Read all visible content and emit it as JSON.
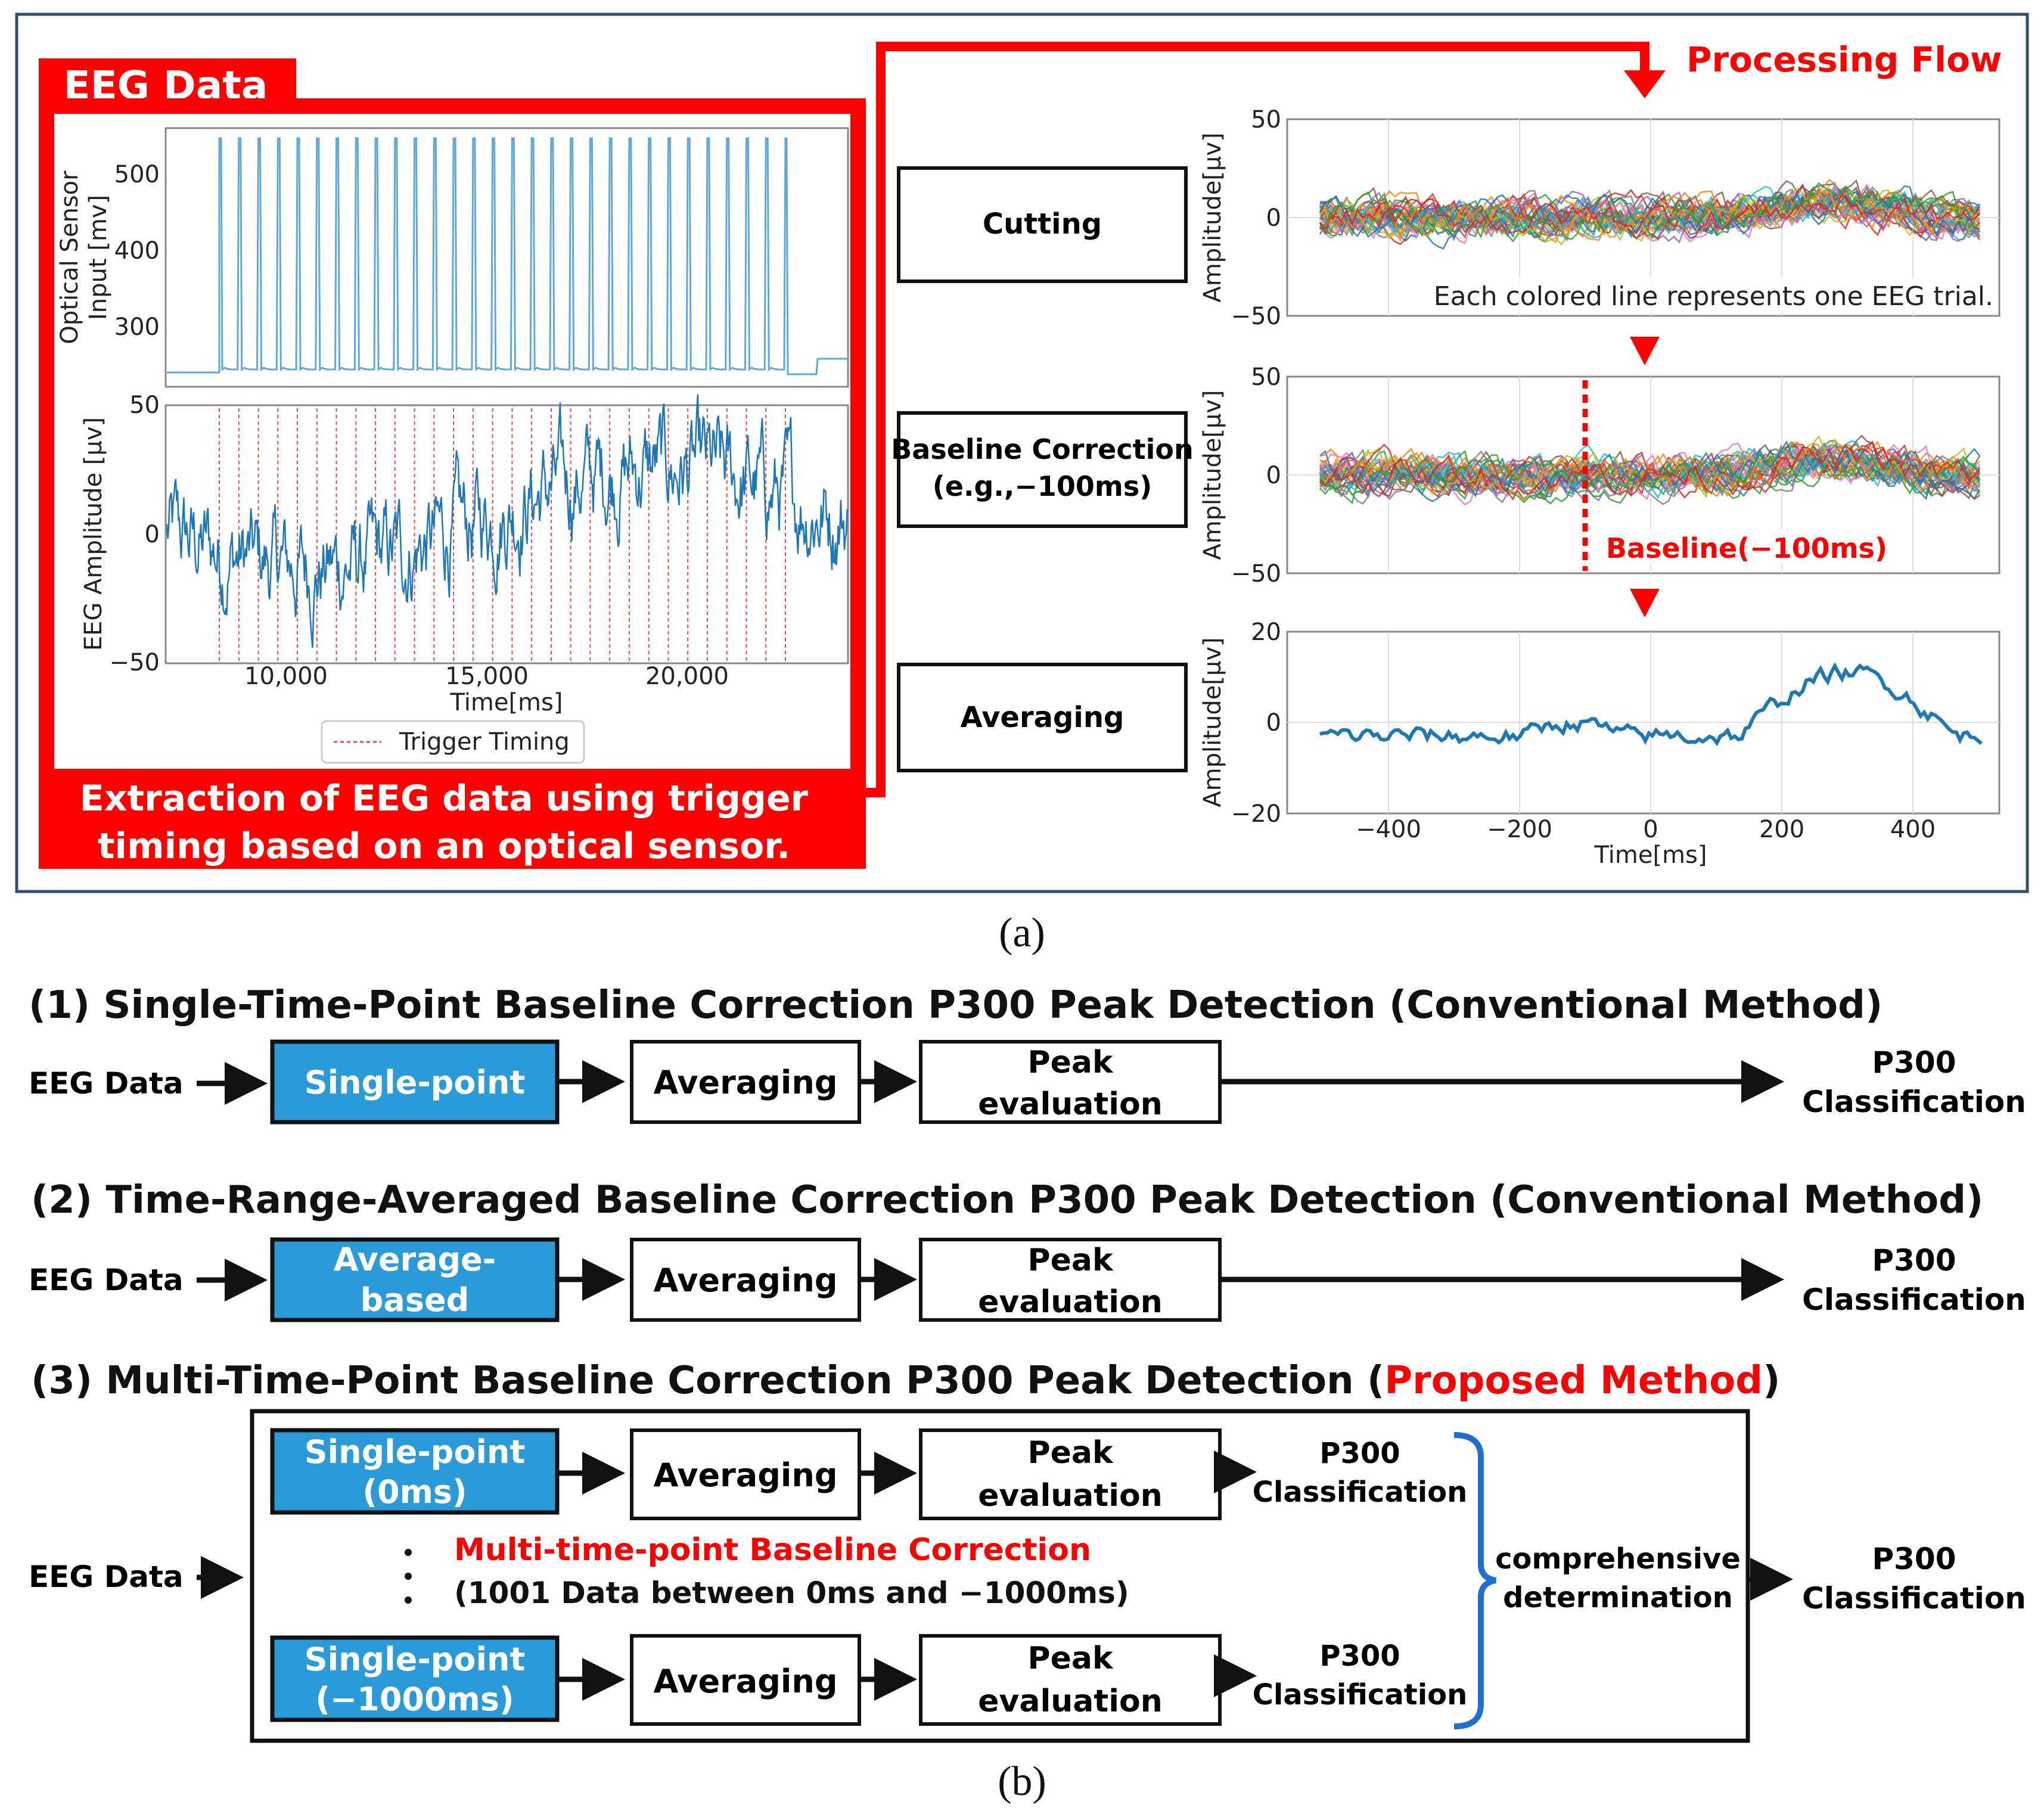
{
  "colors": {
    "red": "#ff0000",
    "blue": "#2a9ad8",
    "black": "#111111",
    "border_blue": "#2f4f6f",
    "eeg_blue": "#1f77b4",
    "sensor_blue": "#5fa8d8"
  },
  "panel_a": {
    "eeg_box_title": "EEG Data",
    "eeg_box_caption_line1": "Extraction of EEG data using trigger",
    "eeg_box_caption_line2": "timing based on an optical sensor.",
    "processing_flow": "Processing Flow",
    "sensor_plot": {
      "ylabel_line1": "Optical Sensor",
      "ylabel_line2": "Input [mv]",
      "yticks": [
        "500",
        "400",
        "300"
      ]
    },
    "eeg_plot": {
      "ylabel": "EEG Amplitude [μv]",
      "yticks": [
        "50",
        "0",
        "−50"
      ],
      "xticks": [
        "10,000",
        "15,000",
        "20,000"
      ],
      "xlabel": "Time[ms]",
      "legend": "Trigger Timing"
    },
    "steps": [
      {
        "label_line1": "Cutting",
        "label_line2": ""
      },
      {
        "label_line1": "Baseline Correction",
        "label_line2": "(e.g.,−100ms)"
      },
      {
        "label_line1": "Averaging",
        "label_line2": ""
      }
    ],
    "trial_plot": {
      "ylabel": "Amplitude[μv]",
      "yticks": [
        "50",
        "0",
        "−50"
      ],
      "annotation": "Each colored line represents one EEG trial."
    },
    "baseline_plot": {
      "ylabel": "Amplitude[μv]",
      "yticks": [
        "50",
        "0",
        "−50"
      ],
      "annotation": "Baseline(−100ms)"
    },
    "average_plot": {
      "ylabel": "Amplitude[μv]",
      "yticks": [
        "20",
        "0",
        "−20"
      ],
      "xticks": [
        "−400",
        "−200",
        "0",
        "200",
        "400"
      ],
      "xlabel": "Time[ms]"
    },
    "label": "(a)"
  },
  "panel_b": {
    "rows": [
      {
        "title": "(1) Single-Time-Point Baseline Correction P300 Peak Detection (Conventional Method)",
        "input": "EEG Data",
        "blue_line1": "Single-point",
        "blue_line2": "",
        "avg": "Averaging",
        "peak_line1": "Peak",
        "peak_line2": "evaluation",
        "out_line1": "P300",
        "out_line2": "Classification"
      },
      {
        "title": "(2) Time-Range-Averaged Baseline Correction P300 Peak Detection (Conventional Method)",
        "input": "EEG Data",
        "blue_line1": "Average-",
        "blue_line2": "based",
        "avg": "Averaging",
        "peak_line1": "Peak",
        "peak_line2": "evaluation",
        "out_line1": "P300",
        "out_line2": "Classification"
      }
    ],
    "row3": {
      "title_prefix": "(3) Multi-Time-Point Baseline Correction P300 Peak Detection (",
      "title_highlight": "Proposed Method",
      "title_suffix": ")",
      "input": "EEG Data",
      "top": {
        "blue_line1": "Single-point",
        "blue_line2": "(0ms)",
        "avg": "Averaging",
        "peak_line1": "Peak",
        "peak_line2": "evaluation",
        "out_line1": "P300",
        "out_line2": "Classification"
      },
      "bottom": {
        "blue_line1": "Single-point",
        "blue_line2": "(−1000ms)",
        "avg": "Averaging",
        "peak_line1": "Peak",
        "peak_line2": "evaluation",
        "out_line1": "P300",
        "out_line2": "Classification"
      },
      "note_red": "Multi-time-point Baseline Correction",
      "note_black": "(1001 Data between 0ms and −1000ms)",
      "combine_line1": "comprehensive",
      "combine_line2": "determination",
      "final_line1": "P300",
      "final_line2": "Classification"
    },
    "label": "(b)"
  }
}
